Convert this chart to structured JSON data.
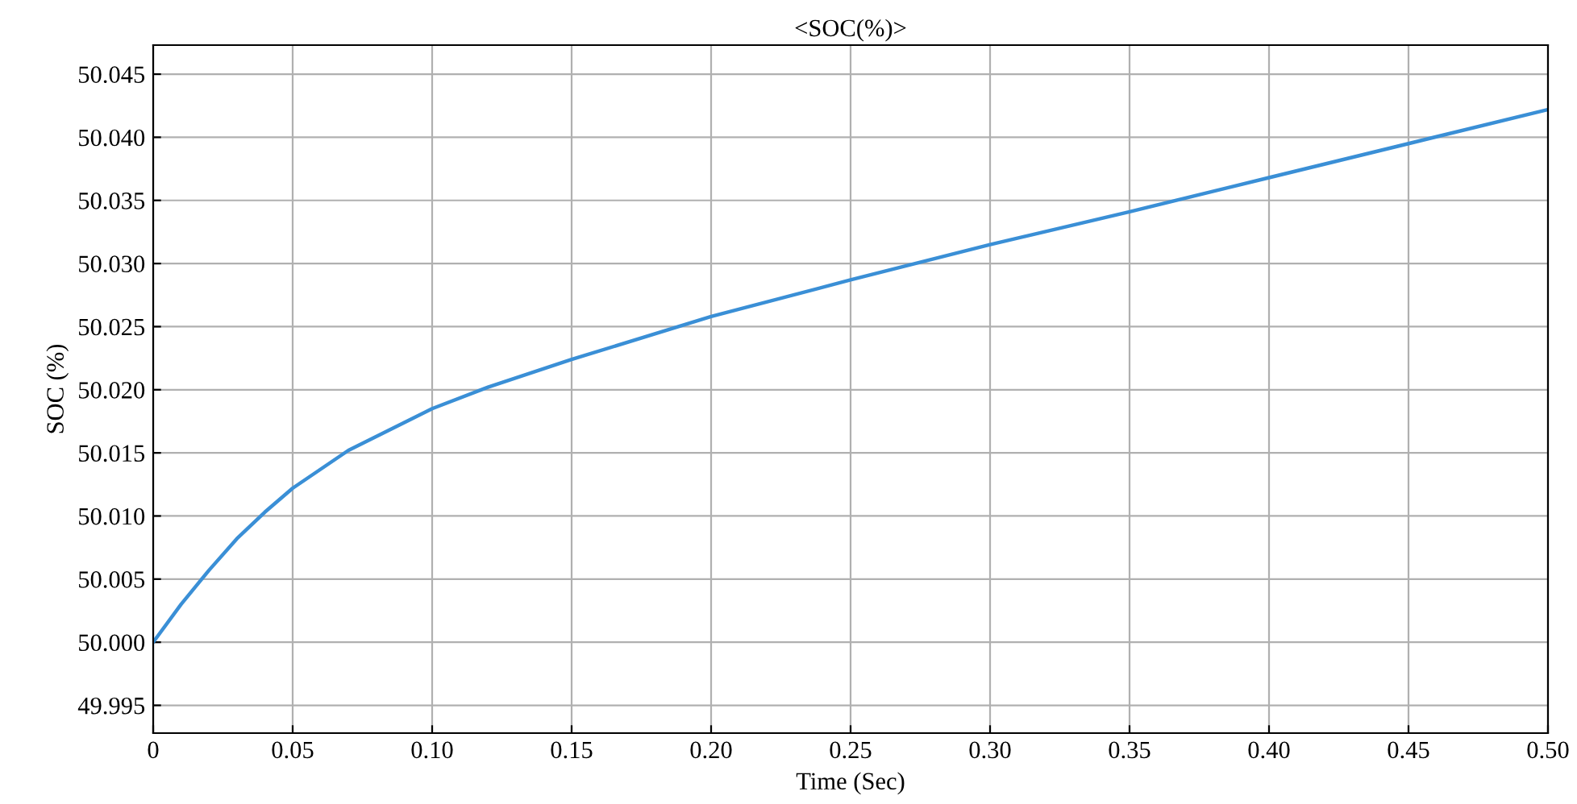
{
  "chart_data": {
    "type": "line",
    "title": "<SOC(%)>",
    "xlabel": "Time (Sec)",
    "ylabel": "SOC (%)",
    "x": [
      0,
      0.01,
      0.02,
      0.03,
      0.04,
      0.05,
      0.07,
      0.1,
      0.12,
      0.15,
      0.2,
      0.25,
      0.3,
      0.35,
      0.4,
      0.45,
      0.5
    ],
    "series": [
      {
        "color": "#3a8fd6",
        "values": [
          50.0,
          50.003,
          50.0057,
          50.0082,
          50.0103,
          50.0122,
          50.0152,
          50.0185,
          50.0202,
          50.0224,
          50.0258,
          50.0287,
          50.0315,
          50.0341,
          50.0368,
          50.0395,
          50.0422
        ]
      }
    ],
    "xlim": [
      0,
      0.5
    ],
    "ylim": [
      49.9928,
      50.0473
    ],
    "xticks": [
      {
        "value": 0,
        "label": "0"
      },
      {
        "value": 0.05,
        "label": "0.05"
      },
      {
        "value": 0.1,
        "label": "0.10"
      },
      {
        "value": 0.15,
        "label": "0.15"
      },
      {
        "value": 0.2,
        "label": "0.20"
      },
      {
        "value": 0.25,
        "label": "0.25"
      },
      {
        "value": 0.3,
        "label": "0.30"
      },
      {
        "value": 0.35,
        "label": "0.35"
      },
      {
        "value": 0.4,
        "label": "0.40"
      },
      {
        "value": 0.45,
        "label": "0.45"
      },
      {
        "value": 0.5,
        "label": "0.50"
      }
    ],
    "yticks": [
      {
        "value": 49.995,
        "label": "49.995"
      },
      {
        "value": 50.0,
        "label": "50.000"
      },
      {
        "value": 50.005,
        "label": "50.005"
      },
      {
        "value": 50.01,
        "label": "50.010"
      },
      {
        "value": 50.015,
        "label": "50.015"
      },
      {
        "value": 50.02,
        "label": "50.020"
      },
      {
        "value": 50.025,
        "label": "50.025"
      },
      {
        "value": 50.03,
        "label": "50.030"
      },
      {
        "value": 50.035,
        "label": "50.035"
      },
      {
        "value": 50.04,
        "label": "50.040"
      },
      {
        "value": 50.045,
        "label": "50.045"
      }
    ],
    "grid": true,
    "legend": false
  }
}
